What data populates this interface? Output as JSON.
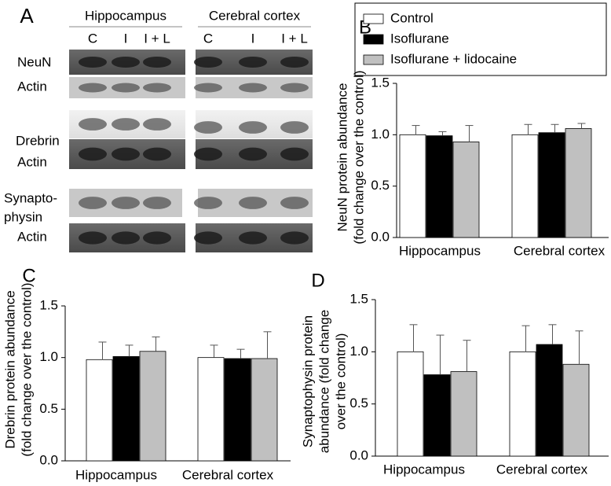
{
  "panel_a": {
    "label": "A",
    "regions": [
      "Hippocampus",
      "Cerebral cortex"
    ],
    "lanes": [
      "C",
      "I",
      "I + L"
    ],
    "rows": [
      "NeuN",
      "Actin",
      "Drebrin",
      "Actin",
      [
        "Synapto-",
        "physin"
      ],
      "Actin"
    ]
  },
  "chart_data": [
    {
      "type": "bar",
      "panel": "B",
      "ylabel": [
        "NeuN protein abundance",
        "(fold change over the control)"
      ],
      "categories": [
        "Hippocampus",
        "Cerebral cortex"
      ],
      "series": [
        {
          "name": "Control",
          "color": "#ffffff",
          "values": [
            1.0,
            1.0
          ],
          "errors": [
            0.09,
            0.1
          ]
        },
        {
          "name": "Isoflurane",
          "color": "#000000",
          "values": [
            0.99,
            1.02
          ],
          "errors": [
            0.04,
            0.08
          ]
        },
        {
          "name": "Isoflurane + lidocaine",
          "color": "#c0c0c0",
          "values": [
            0.93,
            1.06
          ],
          "errors": [
            0.16,
            0.05
          ]
        }
      ],
      "ylim": [
        0,
        1.5
      ],
      "yticks": [
        {
          "value": 0,
          "label": "0.0"
        },
        0.5,
        {
          "value": 1,
          "label": "1.0"
        },
        1.5
      ]
    },
    {
      "type": "bar",
      "panel": "C",
      "ylabel": [
        "Drebrin protein abundance",
        "(fold change over the control)"
      ],
      "categories": [
        "Hippocampus",
        "Cerebral cortex"
      ],
      "series": [
        {
          "values": [
            0.98,
            1.0
          ],
          "errors": [
            0.17,
            0.12
          ]
        },
        {
          "values": [
            1.01,
            0.99
          ],
          "errors": [
            0.11,
            0.09
          ]
        },
        {
          "values": [
            1.06,
            0.99
          ],
          "errors": [
            0.14,
            0.26
          ]
        }
      ],
      "ylim": [
        0,
        1.5
      ],
      "yticks": [
        {
          "value": 0,
          "label": "0.0"
        },
        0.5,
        {
          "value": 1,
          "label": "1.0"
        },
        1.5
      ]
    },
    {
      "type": "bar",
      "panel": "D",
      "ylabel": [
        "Synaptophysin protein",
        "abundance (fold change",
        "over the control)"
      ],
      "categories": [
        "Hippocampus",
        "Cerebral cortex"
      ],
      "series": [
        {
          "values": [
            1.0,
            1.0
          ],
          "errors": [
            0.26,
            0.25
          ]
        },
        {
          "values": [
            0.78,
            1.07
          ],
          "errors": [
            0.38,
            0.19
          ]
        },
        {
          "values": [
            0.81,
            0.88
          ],
          "errors": [
            0.3,
            0.32
          ]
        }
      ],
      "ylim": [
        0,
        1.5
      ],
      "yticks": [
        {
          "value": 0,
          "label": "0.0"
        },
        0.5,
        {
          "value": 1,
          "label": "1.0"
        },
        1.5
      ]
    }
  ]
}
